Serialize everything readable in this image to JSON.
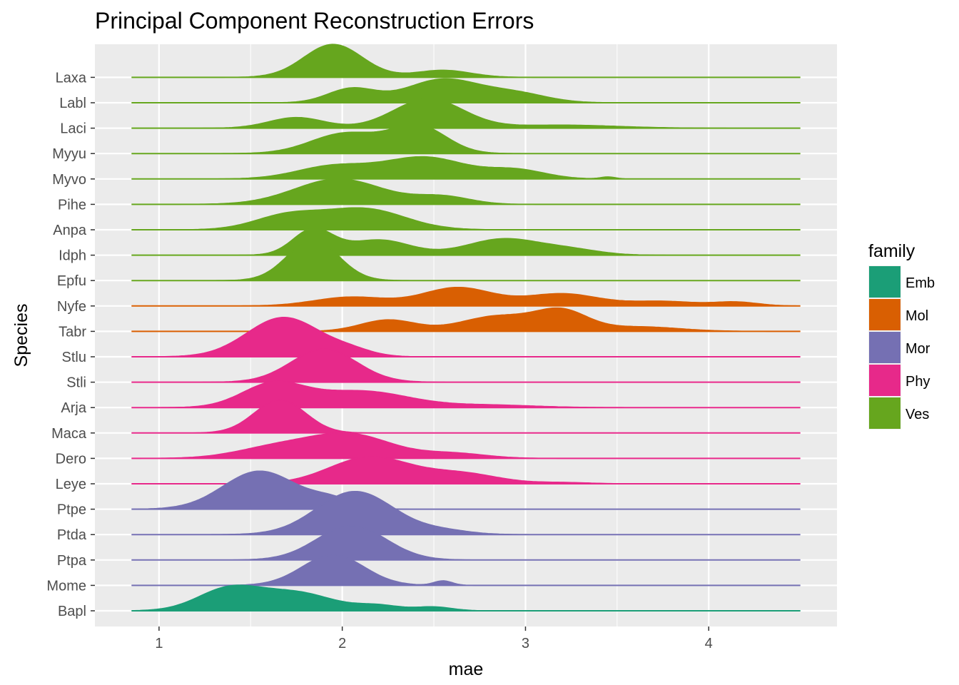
{
  "chart_data": {
    "type": "ridgeline",
    "title": "Principal Component Reconstruction Errors",
    "xlabel": "mae",
    "ylabel": "Species",
    "xlim": [
      0.65,
      4.7
    ],
    "x_ticks": [
      1,
      2,
      3,
      4
    ],
    "grid": true,
    "legend": {
      "title": "family",
      "placement": "right",
      "entries": [
        {
          "label": "Emb",
          "color": "#1b9e77"
        },
        {
          "label": "Mol",
          "color": "#d95f02"
        },
        {
          "label": "Mor",
          "color": "#7570b3"
        },
        {
          "label": "Phy",
          "color": "#e7298a"
        },
        {
          "label": "Ves",
          "color": "#66a61e"
        }
      ]
    },
    "species": [
      {
        "name": "Laxa",
        "family": "Ves",
        "peaks": [
          [
            1.95,
            0.16,
            1.3
          ],
          [
            2.55,
            0.15,
            0.28
          ]
        ]
      },
      {
        "name": "Labl",
        "family": "Ves",
        "peaks": [
          [
            2.05,
            0.13,
            0.55
          ],
          [
            2.55,
            0.2,
            0.92
          ],
          [
            2.95,
            0.17,
            0.35
          ]
        ]
      },
      {
        "name": "Laci",
        "family": "Ves",
        "peaks": [
          [
            1.75,
            0.15,
            0.42
          ],
          [
            2.47,
            0.19,
            1.15
          ],
          [
            3.2,
            0.3,
            0.12
          ]
        ]
      },
      {
        "name": "Myyu",
        "family": "Ves",
        "peaks": [
          [
            2.02,
            0.19,
            0.8
          ],
          [
            2.42,
            0.15,
            1.05
          ]
        ]
      },
      {
        "name": "Myvo",
        "family": "Ves",
        "peaks": [
          [
            1.95,
            0.2,
            0.5
          ],
          [
            2.45,
            0.22,
            0.85
          ],
          [
            2.95,
            0.16,
            0.35
          ],
          [
            3.45,
            0.04,
            0.08
          ]
        ]
      },
      {
        "name": "Pihe",
        "family": "Ves",
        "peaks": [
          [
            1.98,
            0.24,
            1.0
          ],
          [
            2.55,
            0.15,
            0.3
          ]
        ]
      },
      {
        "name": "Anpa",
        "family": "Ves",
        "peaks": [
          [
            1.7,
            0.18,
            0.55
          ],
          [
            2.12,
            0.22,
            0.82
          ]
        ]
      },
      {
        "name": "Idph",
        "family": "Ves",
        "peaks": [
          [
            1.84,
            0.11,
            1.0
          ],
          [
            2.2,
            0.17,
            0.6
          ],
          [
            2.88,
            0.2,
            0.64
          ],
          [
            3.25,
            0.16,
            0.2
          ]
        ]
      },
      {
        "name": "Epfu",
        "family": "Ves",
        "peaks": [
          [
            1.84,
            0.14,
            1.6
          ]
        ]
      },
      {
        "name": "Nyfe",
        "family": "Mol",
        "peaks": [
          [
            2.05,
            0.2,
            0.35
          ],
          [
            2.63,
            0.19,
            0.72
          ],
          [
            3.2,
            0.2,
            0.48
          ],
          [
            3.75,
            0.18,
            0.18
          ],
          [
            4.15,
            0.12,
            0.15
          ]
        ]
      },
      {
        "name": "Tabr",
        "family": "Mol",
        "peaks": [
          [
            2.25,
            0.15,
            0.45
          ],
          [
            2.85,
            0.2,
            0.6
          ],
          [
            3.2,
            0.14,
            0.75
          ],
          [
            3.62,
            0.22,
            0.18
          ]
        ]
      },
      {
        "name": "Stlu",
        "family": "Phy",
        "peaks": [
          [
            1.68,
            0.2,
            1.55
          ],
          [
            2.05,
            0.12,
            0.2
          ]
        ]
      },
      {
        "name": "Stli",
        "family": "Phy",
        "peaks": [
          [
            1.9,
            0.18,
            1.3
          ]
        ]
      },
      {
        "name": "Arja",
        "family": "Phy",
        "peaks": [
          [
            1.62,
            0.17,
            0.9
          ],
          [
            2.1,
            0.26,
            0.65
          ],
          [
            2.8,
            0.25,
            0.1
          ]
        ]
      },
      {
        "name": "Maca",
        "family": "Phy",
        "peaks": [
          [
            1.66,
            0.14,
            1.3
          ]
        ]
      },
      {
        "name": "Dero",
        "family": "Phy",
        "peaks": [
          [
            1.65,
            0.22,
            0.45
          ],
          [
            2.05,
            0.22,
            0.9
          ],
          [
            2.6,
            0.18,
            0.2
          ]
        ]
      },
      {
        "name": "Leye",
        "family": "Phy",
        "peaks": [
          [
            2.15,
            0.22,
            1.05
          ],
          [
            2.65,
            0.2,
            0.4
          ],
          [
            3.2,
            0.15,
            0.05
          ]
        ]
      },
      {
        "name": "Ptpe",
        "family": "Mor",
        "peaks": [
          [
            1.55,
            0.2,
            1.5
          ],
          [
            1.95,
            0.12,
            0.35
          ]
        ]
      },
      {
        "name": "Ptda",
        "family": "Mor",
        "peaks": [
          [
            2.07,
            0.21,
            1.7
          ],
          [
            2.55,
            0.15,
            0.15
          ]
        ]
      },
      {
        "name": "Ptpa",
        "family": "Mor",
        "peaks": [
          [
            2.05,
            0.19,
            1.35
          ]
        ]
      },
      {
        "name": "Mome",
        "family": "Mor",
        "peaks": [
          [
            1.95,
            0.17,
            1.2
          ],
          [
            2.55,
            0.05,
            0.18
          ]
        ]
      },
      {
        "name": "Bapl",
        "family": "Emb",
        "peaks": [
          [
            1.38,
            0.17,
            0.85
          ],
          [
            1.75,
            0.2,
            0.7
          ],
          [
            2.2,
            0.12,
            0.2
          ],
          [
            2.5,
            0.1,
            0.15
          ]
        ]
      }
    ]
  }
}
